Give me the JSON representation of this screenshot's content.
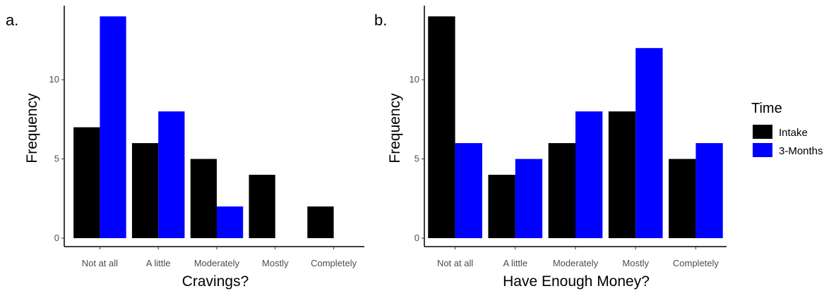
{
  "chart_data": [
    {
      "type": "bar",
      "panel_label": "a.",
      "xlabel": "Cravings?",
      "ylabel": "Frequency",
      "categories": [
        "Not at all",
        "A little",
        "Moderately",
        "Mostly",
        "Completely"
      ],
      "ylim": [
        0,
        14.5
      ],
      "yticks": [
        "0",
        "5",
        "10"
      ],
      "grid": false,
      "series": [
        {
          "name": "Intake",
          "color": "#000000",
          "values": [
            7,
            6,
            5,
            4,
            2
          ]
        },
        {
          "name": "3-Months",
          "color": "#0000ff",
          "values": [
            14,
            8,
            2,
            0,
            0
          ]
        }
      ]
    },
    {
      "type": "bar",
      "panel_label": "b.",
      "xlabel": "Have Enough Money?",
      "ylabel": "Frequency",
      "categories": [
        "Not at all",
        "A little",
        "Moderately",
        "Mostly",
        "Completely"
      ],
      "ylim": [
        0,
        14.5
      ],
      "yticks": [
        "0",
        "5",
        "10"
      ],
      "grid": false,
      "series": [
        {
          "name": "Intake",
          "color": "#000000",
          "values": [
            14,
            4,
            6,
            8,
            5
          ]
        },
        {
          "name": "3-Months",
          "color": "#0000ff",
          "values": [
            6,
            5,
            8,
            12,
            6
          ]
        }
      ]
    }
  ],
  "legend": {
    "title": "Time",
    "position": "right",
    "items": [
      {
        "label": "Intake",
        "color": "#000000"
      },
      {
        "label": "3-Months",
        "color": "#0000ff"
      }
    ]
  }
}
